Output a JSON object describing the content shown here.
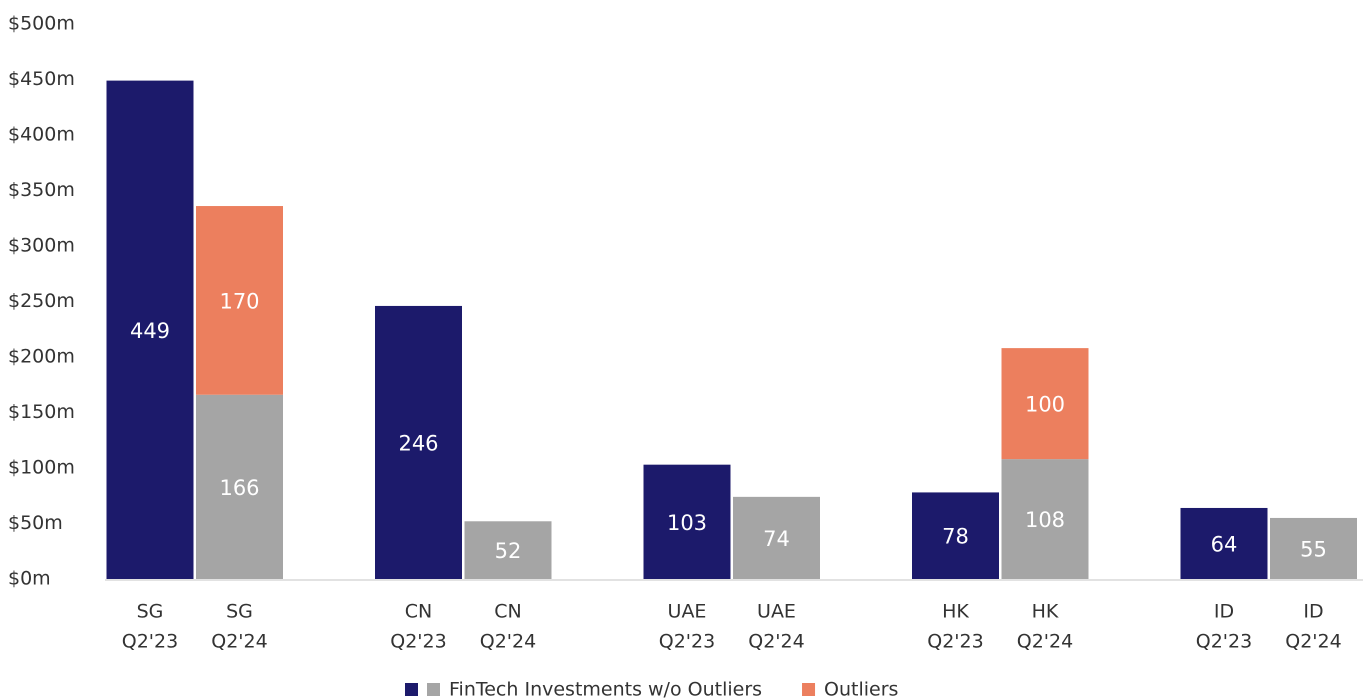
{
  "chart_data": {
    "type": "stacked_bar",
    "categories": [
      [
        "SG",
        "Q2'23"
      ],
      [
        "SG",
        "Q2'24"
      ],
      [
        "CN",
        "Q2'23"
      ],
      [
        "CN",
        "Q2'24"
      ],
      [
        "UAE",
        "Q2'23"
      ],
      [
        "UAE",
        "Q2'24"
      ],
      [
        "HK",
        "Q2'23"
      ],
      [
        "HK",
        "Q2'24"
      ],
      [
        "ID",
        "Q2'23"
      ],
      [
        "ID",
        "Q2'24"
      ]
    ],
    "series": [
      {
        "name": "FinTech Investments w/o Outliers",
        "colors": [
          "#1c1a6b",
          "#a5a5a5",
          "#1c1a6b",
          "#a5a5a5",
          "#1c1a6b",
          "#a5a5a5",
          "#1c1a6b",
          "#a5a5a5",
          "#1c1a6b",
          "#a5a5a5"
        ],
        "values": [
          449,
          166,
          246,
          52,
          103,
          74,
          78,
          108,
          64,
          55
        ]
      },
      {
        "name": "Outliers",
        "color": "#ec7f5e",
        "values": [
          null,
          170,
          null,
          null,
          null,
          null,
          null,
          100,
          null,
          null
        ]
      }
    ],
    "ylim": [
      0,
      500
    ],
    "yticks": [
      {
        "value": 0,
        "label": "$0m"
      },
      {
        "value": 50,
        "label": "$50m"
      },
      {
        "value": 100,
        "label": "$100m"
      },
      {
        "value": 150,
        "label": "$150m"
      },
      {
        "value": 200,
        "label": "$200m"
      },
      {
        "value": 250,
        "label": "$250m"
      },
      {
        "value": 300,
        "label": "$300m"
      },
      {
        "value": 350,
        "label": "$350m"
      },
      {
        "value": 400,
        "label": "$400m"
      },
      {
        "value": 450,
        "label": "$450m"
      },
      {
        "value": 500,
        "label": "$500m"
      }
    ],
    "legend": "bottom"
  }
}
